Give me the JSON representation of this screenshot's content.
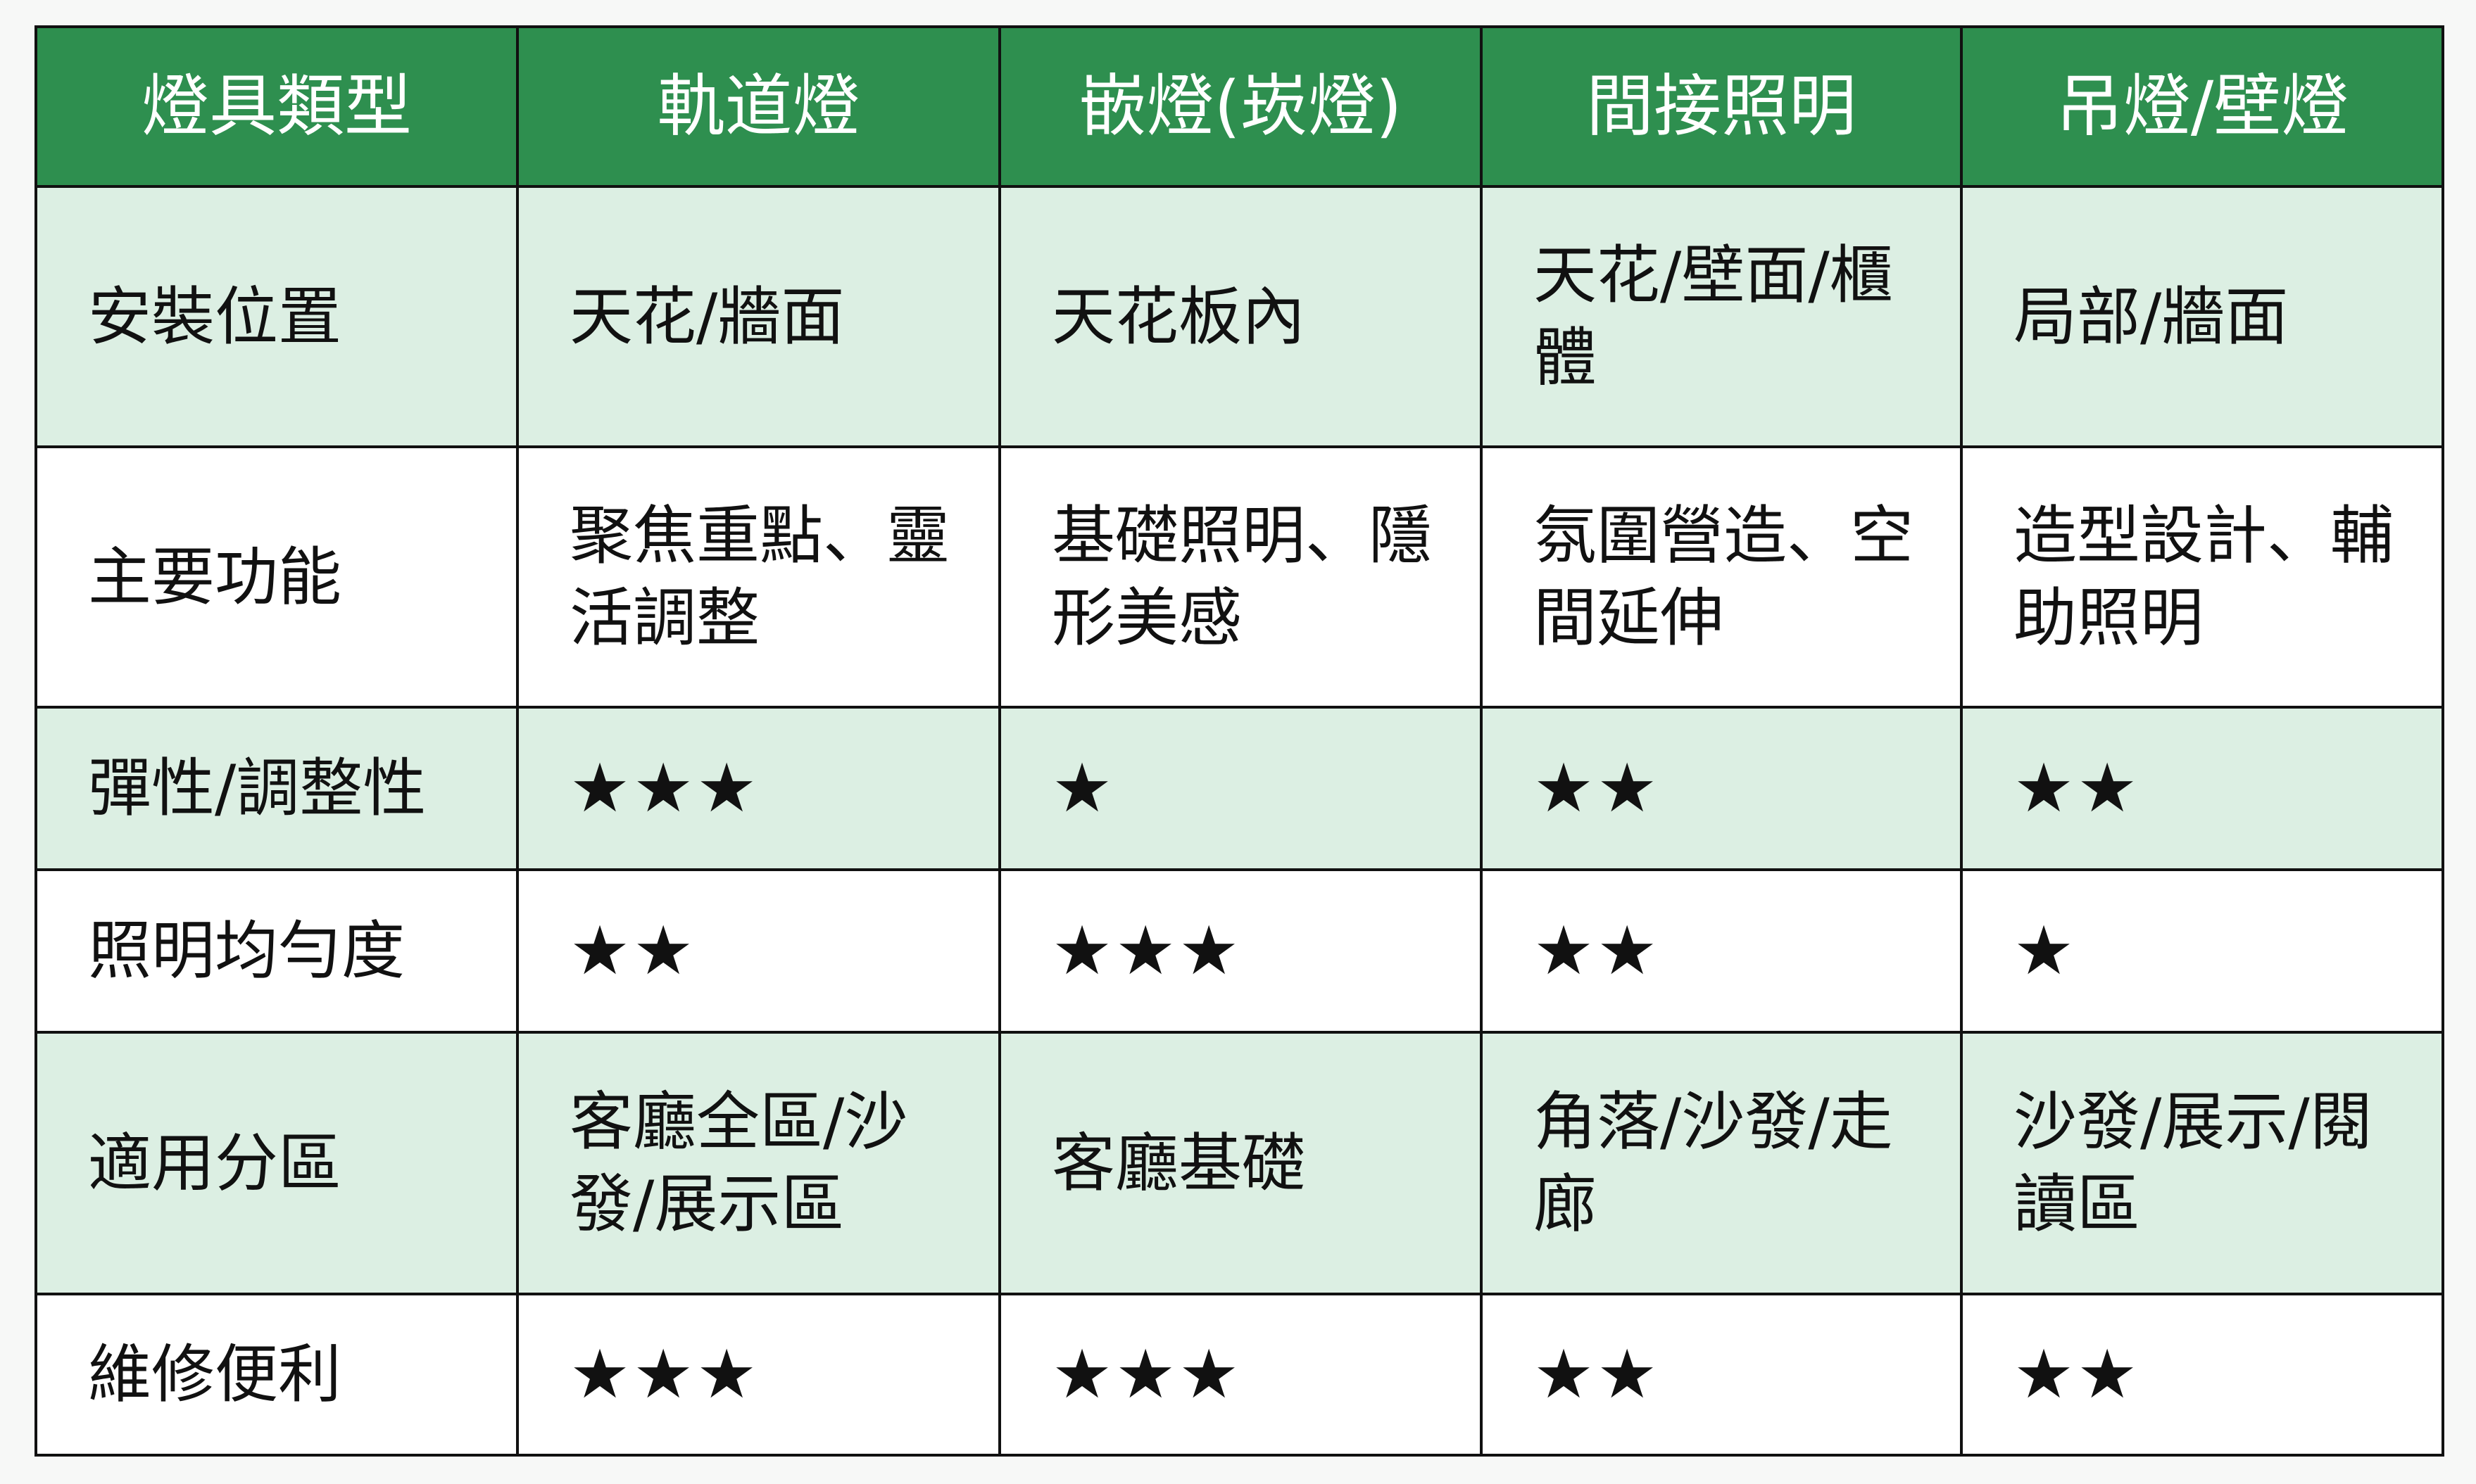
{
  "header": [
    "燈具類型",
    "軌道燈",
    "嵌燈(崁燈)",
    "間接照明",
    "吊燈/壁燈"
  ],
  "rows": [
    {
      "label": "安裝位置",
      "cells": [
        "天花/牆面",
        "天花板內",
        "天花/壁面/櫃體",
        "局部/牆面"
      ]
    },
    {
      "label": "主要功能",
      "cells": [
        "聚焦重點、靈活調整",
        "基礎照明、隱形美感",
        "氛圍營造、空間延伸",
        "造型設計、輔助照明"
      ]
    },
    {
      "label": "彈性/調整性",
      "cells": [
        "★★★",
        "★",
        "★★",
        "★★"
      ],
      "ratings": [
        3,
        1,
        2,
        2
      ]
    },
    {
      "label": "照明均勻度",
      "cells": [
        "★★",
        "★★★",
        "★★",
        "★"
      ],
      "ratings": [
        2,
        3,
        2,
        1
      ]
    },
    {
      "label": "適用分區",
      "cells": [
        "客廳全區/沙發/展示區",
        "客廳基礎",
        "角落/沙發/走廊",
        "沙發/展示/閱讀區"
      ]
    },
    {
      "label": "維修便利",
      "cells": [
        "★★★",
        "★★★",
        "★★",
        "★★"
      ],
      "ratings": [
        3,
        3,
        2,
        2
      ]
    }
  ],
  "colors": {
    "header_bg": "#2e8f4f",
    "alt_row_bg": "#dcefe3"
  }
}
